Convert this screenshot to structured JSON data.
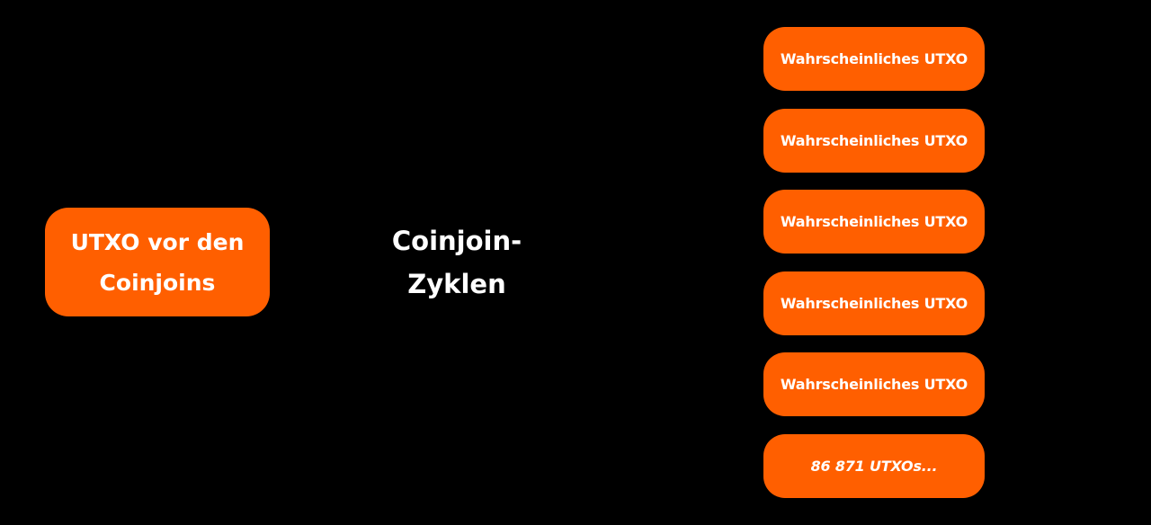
{
  "source": {
    "label": "UTXO vor den Coinjoins"
  },
  "process": {
    "label": "Coinjoin-Zyklen"
  },
  "outputs": [
    "Wahrscheinliches UTXO",
    "Wahrscheinliches UTXO",
    "Wahrscheinliches UTXO",
    "Wahrscheinliches UTXO",
    "Wahrscheinliches UTXO",
    "86 871 UTXOs..."
  ],
  "colors": {
    "background": "#000000",
    "accent": "#ff5f00",
    "text": "#ffffff"
  }
}
